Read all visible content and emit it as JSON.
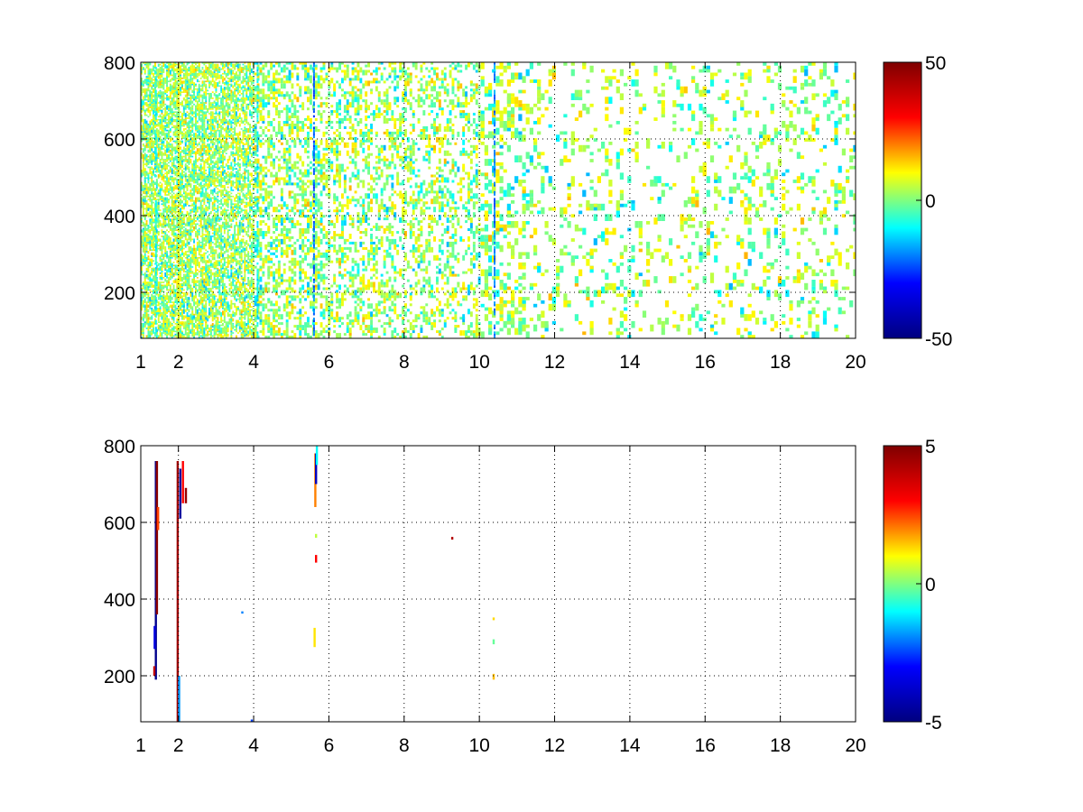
{
  "figure": {
    "panels": 2,
    "background": "#ffffff",
    "colormap": "jet",
    "colormap_stops": [
      "#00007f",
      "#0000ff",
      "#00ffff",
      "#ffff00",
      "#ff0000",
      "#7f0000"
    ]
  },
  "chart_data": [
    {
      "type": "heatmap",
      "title": "",
      "xlabel": "",
      "ylabel": "",
      "xlim": [
        1,
        20
      ],
      "ylim": [
        80,
        800
      ],
      "x_ticks": [
        "1",
        "2",
        "4",
        "6",
        "8",
        "10",
        "12",
        "14",
        "16",
        "18",
        "20"
      ],
      "y_ticks": [
        "200",
        "400",
        "600",
        "800"
      ],
      "grid": true,
      "colorbar": {
        "range": [
          -50,
          50
        ],
        "tick_labels": [
          "50",
          "0",
          "-50"
        ],
        "placement": "right"
      },
      "texture_seed": 7,
      "prominent_columns": [
        {
          "x": 1.4,
          "value": -8
        },
        {
          "x": 2.0,
          "value": 9
        },
        {
          "x": 4.1,
          "value": -10
        },
        {
          "x": 5.6,
          "value": -22
        },
        {
          "x": 10.4,
          "value": -20
        }
      ],
      "density_profile": [
        {
          "x": 1.0,
          "density": 0.55
        },
        {
          "x": 4.0,
          "density": 0.45
        },
        {
          "x": 6.0,
          "density": 0.32
        },
        {
          "x": 10.5,
          "density": 0.28
        },
        {
          "x": 12.0,
          "density": 0.13
        },
        {
          "x": 20.0,
          "density": 0.15
        }
      ],
      "value_note": "values cluster near 0 (range about -20 to +15)"
    },
    {
      "type": "heatmap",
      "title": "",
      "xlabel": "",
      "ylabel": "",
      "xlim": [
        1,
        20
      ],
      "ylim": [
        80,
        800
      ],
      "x_ticks": [
        "1",
        "2",
        "4",
        "6",
        "8",
        "10",
        "12",
        "14",
        "16",
        "18",
        "20"
      ],
      "y_ticks": [
        "200",
        "400",
        "600",
        "800"
      ],
      "grid": true,
      "colorbar": {
        "range": [
          -5,
          5
        ],
        "tick_labels": [
          "5",
          "0",
          "-5"
        ],
        "placement": "right"
      },
      "points": [
        {
          "x": 1.4,
          "y0": 190,
          "y1": 760,
          "value": -4.8
        },
        {
          "x": 1.43,
          "y0": 360,
          "y1": 760,
          "value": 4.8
        },
        {
          "x": 1.37,
          "y0": 270,
          "y1": 330,
          "value": -3.5
        },
        {
          "x": 1.46,
          "y0": 580,
          "y1": 640,
          "value": 2.5
        },
        {
          "x": 1.36,
          "y0": 200,
          "y1": 225,
          "value": 4.0
        },
        {
          "x": 1.98,
          "y0": 80,
          "y1": 760,
          "value": 4.5
        },
        {
          "x": 2.02,
          "y0": 80,
          "y1": 200,
          "value": -1.8
        },
        {
          "x": 2.05,
          "y0": 610,
          "y1": 740,
          "value": -4.5
        },
        {
          "x": 2.12,
          "y0": 650,
          "y1": 760,
          "value": 3.0
        },
        {
          "x": 2.2,
          "y0": 650,
          "y1": 690,
          "value": 4.6
        },
        {
          "x": 3.7,
          "y0": 362,
          "y1": 368,
          "value": -2.0
        },
        {
          "x": 3.95,
          "y0": 80,
          "y1": 86,
          "value": -2.5
        },
        {
          "x": 5.64,
          "y0": 640,
          "y1": 780,
          "value": 2.0
        },
        {
          "x": 5.66,
          "y0": 700,
          "y1": 780,
          "value": -4.0
        },
        {
          "x": 5.68,
          "y0": 750,
          "y1": 800,
          "value": -1.0
        },
        {
          "x": 5.66,
          "y0": 560,
          "y1": 570,
          "value": 0.5
        },
        {
          "x": 5.66,
          "y0": 495,
          "y1": 515,
          "value": 3.0
        },
        {
          "x": 5.62,
          "y0": 275,
          "y1": 325,
          "value": 1.2
        },
        {
          "x": 9.28,
          "y0": 555,
          "y1": 562,
          "value": 4.2
        },
        {
          "x": 10.38,
          "y0": 345,
          "y1": 352,
          "value": 1.3
        },
        {
          "x": 10.38,
          "y0": 282,
          "y1": 295,
          "value": -0.2
        },
        {
          "x": 10.38,
          "y0": 190,
          "y1": 205,
          "value": 1.5
        }
      ]
    }
  ]
}
